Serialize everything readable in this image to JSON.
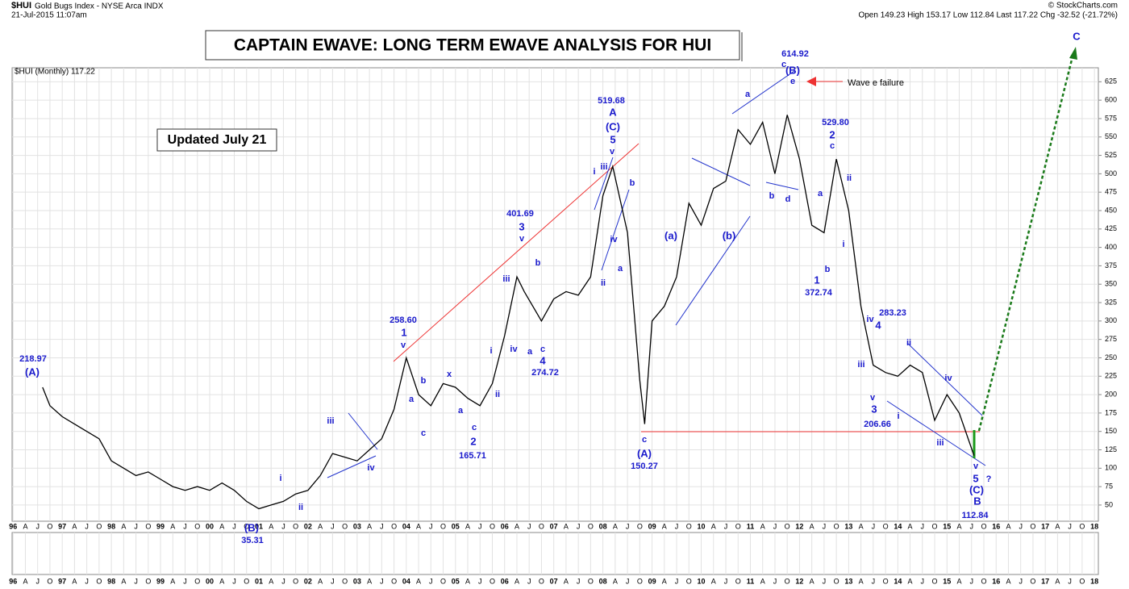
{
  "chart_data": {
    "type": "line",
    "symbol": "$HUI",
    "name": "Gold Bugs Index - NYSE Arca INDX",
    "timestamp": "21-Jul-2015 11:07am",
    "quote": "Open 149.23 High 153.17 Low 112.84 Last 117.22 Chg -32.52 (-21.72%)",
    "credit": "© StockCharts.com",
    "legend": "$HUI (Monthly) 117.22",
    "title": "CAPTAIN EWAVE: LONG TERM EWAVE ANALYSIS FOR HUI",
    "subtitle": "Updated July 21",
    "color": "#000000",
    "annotation_color": "#1a1acc",
    "x": [
      1996.6,
      1996.75,
      1997.0,
      1997.25,
      1997.5,
      1997.75,
      1998.0,
      1998.25,
      1998.5,
      1998.75,
      1999.0,
      1999.25,
      1999.5,
      1999.75,
      2000.0,
      2000.25,
      2000.5,
      2000.75,
      2001.0,
      2001.25,
      2001.5,
      2001.75,
      2002.0,
      2002.25,
      2002.5,
      2002.75,
      2003.0,
      2003.25,
      2003.5,
      2003.75,
      2004.0,
      2004.25,
      2004.5,
      2004.75,
      2005.0,
      2005.25,
      2005.5,
      2005.75,
      2006.0,
      2006.25,
      2006.4,
      2006.75,
      2007.0,
      2007.25,
      2007.5,
      2007.75,
      2008.0,
      2008.2,
      2008.5,
      2008.75,
      2008.85,
      2009.0,
      2009.25,
      2009.5,
      2009.75,
      2010.0,
      2010.25,
      2010.5,
      2010.75,
      2011.0,
      2011.25,
      2011.5,
      2011.75,
      2012.0,
      2012.25,
      2012.5,
      2012.75,
      2013.0,
      2013.25,
      2013.5,
      2013.75,
      2014.0,
      2014.25,
      2014.5,
      2014.75,
      2015.0,
      2015.25,
      2015.55
    ],
    "values": [
      210,
      185,
      170,
      160,
      150,
      140,
      110,
      100,
      90,
      95,
      85,
      75,
      70,
      75,
      70,
      80,
      70,
      55,
      45,
      50,
      55,
      65,
      70,
      90,
      120,
      115,
      110,
      125,
      140,
      180,
      250,
      200,
      185,
      215,
      210,
      195,
      185,
      215,
      280,
      360,
      340,
      300,
      330,
      340,
      335,
      360,
      470,
      510,
      420,
      220,
      160,
      300,
      320,
      360,
      460,
      430,
      480,
      490,
      560,
      540,
      570,
      500,
      580,
      520,
      430,
      420,
      520,
      450,
      320,
      240,
      230,
      225,
      240,
      230,
      165,
      200,
      175,
      117.22
    ],
    "ylim": [
      28,
      644
    ],
    "yticks": [
      50,
      75,
      100,
      125,
      150,
      175,
      200,
      225,
      250,
      275,
      300,
      325,
      350,
      375,
      400,
      425,
      450,
      475,
      500,
      525,
      550,
      575,
      600,
      625
    ],
    "xlim": [
      1995.98,
      2018.08
    ],
    "xticks": [
      {
        "value": 1996,
        "label": "96"
      },
      {
        "value": 1996.25,
        "label": "A"
      },
      {
        "value": 1996.5,
        "label": "J"
      },
      {
        "value": 1996.75,
        "label": "O"
      },
      {
        "value": 1997,
        "label": "97"
      },
      {
        "value": 1997.25,
        "label": "A"
      },
      {
        "value": 1997.5,
        "label": "J"
      },
      {
        "value": 1997.75,
        "label": "O"
      },
      {
        "value": 1998,
        "label": "98"
      },
      {
        "value": 1998.25,
        "label": "A"
      },
      {
        "value": 1998.5,
        "label": "J"
      },
      {
        "value": 1998.75,
        "label": "O"
      },
      {
        "value": 1999,
        "label": "99"
      },
      {
        "value": 1999.25,
        "label": "A"
      },
      {
        "value": 1999.5,
        "label": "J"
      },
      {
        "value": 1999.75,
        "label": "O"
      },
      {
        "value": 2000,
        "label": "00"
      },
      {
        "value": 2000.25,
        "label": "A"
      },
      {
        "value": 2000.5,
        "label": "J"
      },
      {
        "value": 2000.75,
        "label": "O"
      },
      {
        "value": 2001,
        "label": "01"
      },
      {
        "value": 2001.25,
        "label": "A"
      },
      {
        "value": 2001.5,
        "label": "J"
      },
      {
        "value": 2001.75,
        "label": "O"
      },
      {
        "value": 2002,
        "label": "02"
      },
      {
        "value": 2002.25,
        "label": "A"
      },
      {
        "value": 2002.5,
        "label": "J"
      },
      {
        "value": 2002.75,
        "label": "O"
      },
      {
        "value": 2003,
        "label": "03"
      },
      {
        "value": 2003.25,
        "label": "A"
      },
      {
        "value": 2003.5,
        "label": "J"
      },
      {
        "value": 2003.75,
        "label": "O"
      },
      {
        "value": 2004,
        "label": "04"
      },
      {
        "value": 2004.25,
        "label": "A"
      },
      {
        "value": 2004.5,
        "label": "J"
      },
      {
        "value": 2004.75,
        "label": "O"
      },
      {
        "value": 2005,
        "label": "05"
      },
      {
        "value": 2005.25,
        "label": "A"
      },
      {
        "value": 2005.5,
        "label": "J"
      },
      {
        "value": 2005.75,
        "label": "O"
      },
      {
        "value": 2006,
        "label": "06"
      },
      {
        "value": 2006.25,
        "label": "A"
      },
      {
        "value": 2006.5,
        "label": "J"
      },
      {
        "value": 2006.75,
        "label": "O"
      },
      {
        "value": 2007,
        "label": "07"
      },
      {
        "value": 2007.25,
        "label": "A"
      },
      {
        "value": 2007.5,
        "label": "J"
      },
      {
        "value": 2007.75,
        "label": "O"
      },
      {
        "value": 2008,
        "label": "08"
      },
      {
        "value": 2008.25,
        "label": "A"
      },
      {
        "value": 2008.5,
        "label": "J"
      },
      {
        "value": 2008.75,
        "label": "O"
      },
      {
        "value": 2009,
        "label": "09"
      },
      {
        "value": 2009.25,
        "label": "A"
      },
      {
        "value": 2009.5,
        "label": "J"
      },
      {
        "value": 2009.75,
        "label": "O"
      },
      {
        "value": 2010,
        "label": "10"
      },
      {
        "value": 2010.25,
        "label": "A"
      },
      {
        "value": 2010.5,
        "label": "J"
      },
      {
        "value": 2010.75,
        "label": "O"
      },
      {
        "value": 2011,
        "label": "11"
      },
      {
        "value": 2011.25,
        "label": "A"
      },
      {
        "value": 2011.5,
        "label": "J"
      },
      {
        "value": 2011.75,
        "label": "O"
      },
      {
        "value": 2012,
        "label": "12"
      },
      {
        "value": 2012.25,
        "label": "A"
      },
      {
        "value": 2012.5,
        "label": "J"
      },
      {
        "value": 2012.75,
        "label": "O"
      },
      {
        "value": 2013,
        "label": "13"
      },
      {
        "value": 2013.25,
        "label": "A"
      },
      {
        "value": 2013.5,
        "label": "J"
      },
      {
        "value": 2013.75,
        "label": "O"
      },
      {
        "value": 2014,
        "label": "14"
      },
      {
        "value": 2014.25,
        "label": "A"
      },
      {
        "value": 2014.5,
        "label": "J"
      },
      {
        "value": 2014.75,
        "label": "O"
      },
      {
        "value": 2015,
        "label": "15"
      },
      {
        "value": 2015.25,
        "label": "A"
      },
      {
        "value": 2015.5,
        "label": "J"
      },
      {
        "value": 2015.75,
        "label": "O"
      },
      {
        "value": 2016,
        "label": "16"
      },
      {
        "value": 2016.25,
        "label": "A"
      },
      {
        "value": 2016.5,
        "label": "J"
      },
      {
        "value": 2016.75,
        "label": "O"
      },
      {
        "value": 2017,
        "label": "17"
      },
      {
        "value": 2017.25,
        "label": "A"
      },
      {
        "value": 2017.5,
        "label": "J"
      },
      {
        "value": 2017.75,
        "label": "O"
      },
      {
        "value": 2018,
        "label": "18"
      }
    ],
    "grid": true,
    "annotations": [
      "218.97",
      "(A)",
      "258.60",
      "1",
      "v",
      "a",
      "b",
      "c",
      "x",
      "a",
      "c",
      "2",
      "165.71",
      "i",
      "ii",
      "iii",
      "iv",
      "401.69",
      "3",
      "v",
      "a",
      "b",
      "c",
      "4",
      "274.72",
      "519.68",
      "A",
      "(C)",
      "5",
      "v",
      "iii",
      "i",
      "iv",
      "ii",
      "a",
      "b",
      "c",
      "(A)",
      "150.27",
      "(a)",
      "(b)",
      "614.92",
      "c",
      "(B)",
      "e",
      "a",
      "b",
      "d",
      "Wave e failure",
      "529.80",
      "2",
      "c",
      "a",
      "b",
      "ii",
      "i",
      "1",
      "372.74",
      "iv",
      "4",
      "283.23",
      "iii",
      "v",
      "3",
      "206.66",
      "i",
      "ii",
      "iii",
      "iv",
      "v",
      "5",
      "?",
      "(C)",
      "B",
      "112.84",
      "C",
      "(B)",
      "35.31",
      "i",
      "ii",
      "iii",
      "iv"
    ]
  }
}
